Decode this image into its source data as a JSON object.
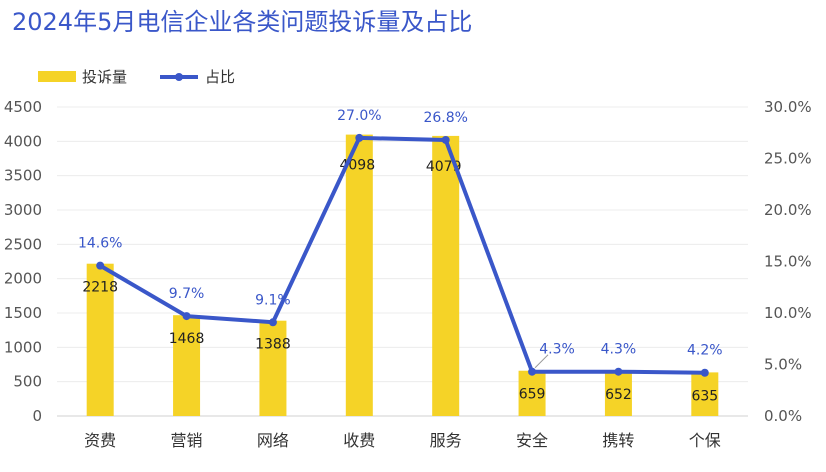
{
  "chart_data": {
    "type": "bar",
    "title": "2024年5月电信企业各类问题投诉量及占比",
    "categories": [
      "资费",
      "营销",
      "网络",
      "收费",
      "服务",
      "安全",
      "携转",
      "个保"
    ],
    "series": [
      {
        "name": "投诉量",
        "type": "bar",
        "axis": "left",
        "values": [
          2218,
          1468,
          1388,
          4098,
          4079,
          659,
          652,
          635
        ],
        "labels": [
          "2218",
          "1468",
          "1388",
          "4098",
          "4079",
          "659",
          "652",
          "635"
        ],
        "color": "#f5d327"
      },
      {
        "name": "占比",
        "type": "line",
        "axis": "right",
        "values": [
          14.6,
          9.7,
          9.1,
          27.0,
          26.8,
          4.3,
          4.3,
          4.2
        ],
        "labels": [
          "14.6%",
          "9.7%",
          "9.1%",
          "27.0%",
          "26.8%",
          "4.3%",
          "4.3%",
          "4.2%"
        ],
        "color": "#3a57c9"
      }
    ],
    "y_left": {
      "min": 0,
      "max": 4500,
      "step": 500,
      "ticks": [
        "0",
        "500",
        "1000",
        "1500",
        "2000",
        "2500",
        "3000",
        "3500",
        "4000",
        "4500"
      ]
    },
    "y_right": {
      "min": 0,
      "max": 30,
      "step": 5,
      "ticks": [
        "0.0%",
        "5.0%",
        "10.0%",
        "15.0%",
        "20.0%",
        "25.0%",
        "30.0%"
      ]
    },
    "grid": true,
    "legend_position": "top-left"
  }
}
